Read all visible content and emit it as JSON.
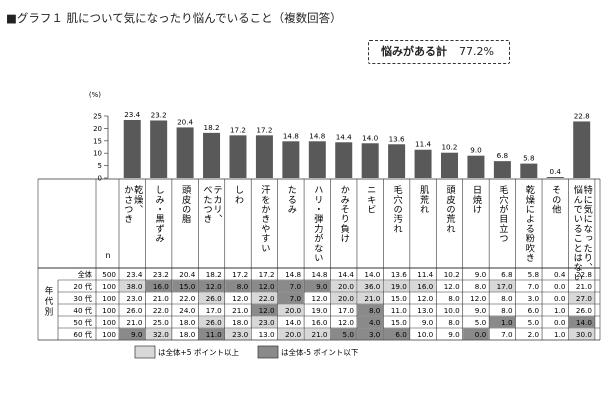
{
  "title": "■グラフ１ 肌について気になったり悩んでいること（複数回答）",
  "callout": {
    "label": "悩みがある計",
    "value": "77.2%"
  },
  "chart_data": {
    "type": "bar",
    "unit_label": "(%)",
    "ylim": [
      0,
      25
    ],
    "yticks": [
      "25",
      "20",
      "15",
      "10",
      "5",
      "0"
    ],
    "categories": [
      "乾燥、かさつき",
      "しみ・黒ずみ",
      "頭皮の脂",
      "テカリ、べたつき",
      "しわ",
      "汗をかきやすい",
      "たるみ",
      "ハリ・弾力がない",
      "かみそり負け",
      "ニキビ",
      "毛穴の汚れ",
      "肌荒れ",
      "頭皮の荒れ",
      "日焼け",
      "毛穴が目立つ",
      "乾燥による粉吹き",
      "その他",
      "特に気になったり、悩んでいることはない"
    ],
    "values": [
      23.4,
      23.2,
      20.4,
      18.2,
      17.2,
      17.2,
      14.8,
      14.8,
      14.4,
      14.0,
      13.6,
      11.4,
      10.2,
      9.0,
      6.8,
      5.8,
      0.4,
      22.8
    ],
    "value_labels": [
      "23.4",
      "23.2",
      "20.4",
      "18.2",
      "17.2",
      "17.2",
      "14.8",
      "14.8",
      "14.4",
      "14.0",
      "13.6",
      "11.4",
      "10.2",
      "9.0",
      "6.8",
      "5.8",
      "0.4",
      "22.8"
    ]
  },
  "table": {
    "n_header": "n",
    "group_label": "年代別",
    "rows": [
      {
        "label": "全体",
        "n": "500",
        "values": [
          "23.4",
          "23.2",
          "20.4",
          "18.2",
          "17.2",
          "17.2",
          "14.8",
          "14.8",
          "14.4",
          "14.0",
          "13.6",
          "11.4",
          "10.2",
          "9.0",
          "6.8",
          "5.8",
          "0.4",
          "22.8"
        ],
        "marks": [
          0,
          0,
          0,
          0,
          0,
          0,
          0,
          0,
          0,
          0,
          0,
          0,
          0,
          0,
          0,
          0,
          0,
          0
        ]
      },
      {
        "label": "20 代",
        "n": "100",
        "values": [
          "38.0",
          "16.0",
          "15.0",
          "12.0",
          "8.0",
          "12.0",
          "7.0",
          "9.0",
          "20.0",
          "36.0",
          "19.0",
          "16.0",
          "12.0",
          "8.0",
          "17.0",
          "7.0",
          "0.0",
          "21.0"
        ],
        "marks": [
          1,
          2,
          2,
          2,
          2,
          2,
          2,
          2,
          1,
          1,
          1,
          1,
          0,
          0,
          1,
          0,
          0,
          0
        ]
      },
      {
        "label": "30 代",
        "n": "100",
        "values": [
          "23.0",
          "21.0",
          "22.0",
          "26.0",
          "12.0",
          "22.0",
          "7.0",
          "12.0",
          "20.0",
          "21.0",
          "15.0",
          "12.0",
          "8.0",
          "12.0",
          "8.0",
          "3.0",
          "0.0",
          "27.0"
        ],
        "marks": [
          0,
          0,
          0,
          1,
          0,
          1,
          2,
          0,
          1,
          1,
          0,
          0,
          0,
          0,
          0,
          0,
          0,
          1
        ]
      },
      {
        "label": "40 代",
        "n": "100",
        "values": [
          "26.0",
          "22.0",
          "24.0",
          "17.0",
          "21.0",
          "12.0",
          "20.0",
          "19.0",
          "17.0",
          "8.0",
          "11.0",
          "13.0",
          "10.0",
          "9.0",
          "8.0",
          "6.0",
          "1.0",
          "26.0"
        ],
        "marks": [
          0,
          0,
          0,
          0,
          0,
          2,
          1,
          0,
          0,
          2,
          0,
          0,
          0,
          0,
          0,
          0,
          0,
          0
        ]
      },
      {
        "label": "50 代",
        "n": "100",
        "values": [
          "21.0",
          "25.0",
          "18.0",
          "26.0",
          "18.0",
          "23.0",
          "14.0",
          "16.0",
          "12.0",
          "4.0",
          "15.0",
          "9.0",
          "8.0",
          "5.0",
          "1.0",
          "5.0",
          "0.0",
          "14.0"
        ],
        "marks": [
          0,
          0,
          0,
          1,
          0,
          1,
          0,
          0,
          0,
          2,
          0,
          0,
          0,
          0,
          2,
          0,
          0,
          2
        ]
      },
      {
        "label": "60 代",
        "n": "100",
        "values": [
          "9.0",
          "32.0",
          "18.0",
          "11.0",
          "23.0",
          "13.0",
          "20.0",
          "21.0",
          "5.0",
          "3.0",
          "6.0",
          "10.0",
          "9.0",
          "0.0",
          "7.0",
          "2.0",
          "1.0",
          "30.0"
        ],
        "marks": [
          2,
          1,
          0,
          2,
          1,
          0,
          1,
          1,
          2,
          2,
          2,
          0,
          0,
          2,
          0,
          0,
          0,
          1
        ]
      }
    ]
  },
  "legend": [
    {
      "label": "は全体+5 ポイント以上",
      "color": "#d8d8d8"
    },
    {
      "label": "は全体-5 ポイント以下",
      "color": "#8a8a8a"
    }
  ]
}
